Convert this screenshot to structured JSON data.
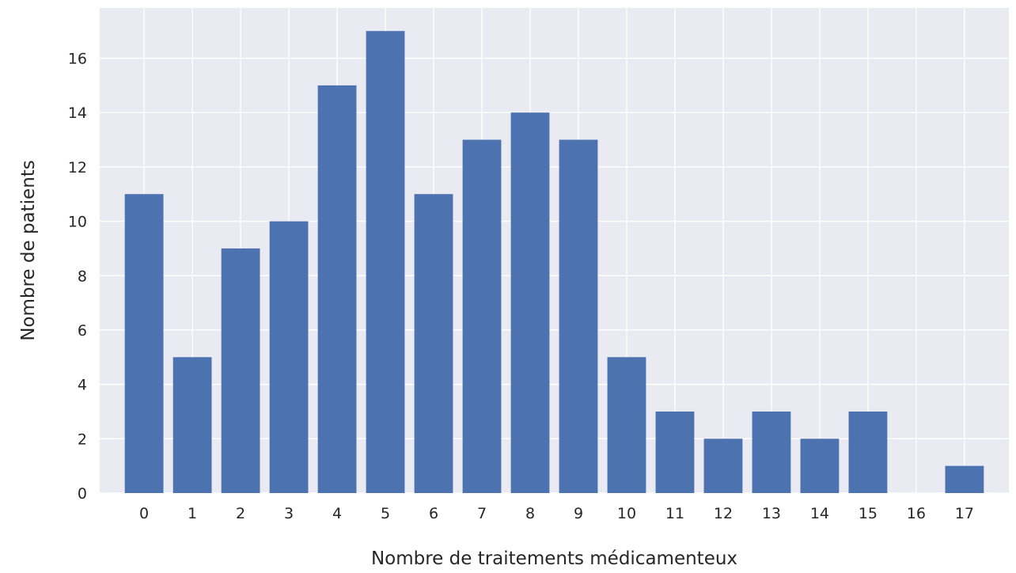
{
  "chart_data": {
    "type": "bar",
    "categories": [
      "0",
      "1",
      "2",
      "3",
      "4",
      "5",
      "6",
      "7",
      "8",
      "9",
      "10",
      "11",
      "12",
      "13",
      "14",
      "15",
      "16",
      "17"
    ],
    "values": [
      11,
      5,
      9,
      10,
      15,
      17,
      11,
      13,
      14,
      13,
      5,
      3,
      2,
      3,
      2,
      3,
      0,
      1
    ],
    "title": "",
    "xlabel": "Nombre de traitements médicamenteux",
    "ylabel": "Nombre de patients",
    "ylim": [
      0,
      17.85
    ],
    "yticks": [
      0,
      2,
      4,
      6,
      8,
      10,
      12,
      14,
      16
    ],
    "grid": true,
    "legend": "none",
    "colors": {
      "bar": "#4c72b0",
      "plot_background": "#eaeaf2",
      "grid": "#ffffff",
      "text": "#262626"
    }
  }
}
